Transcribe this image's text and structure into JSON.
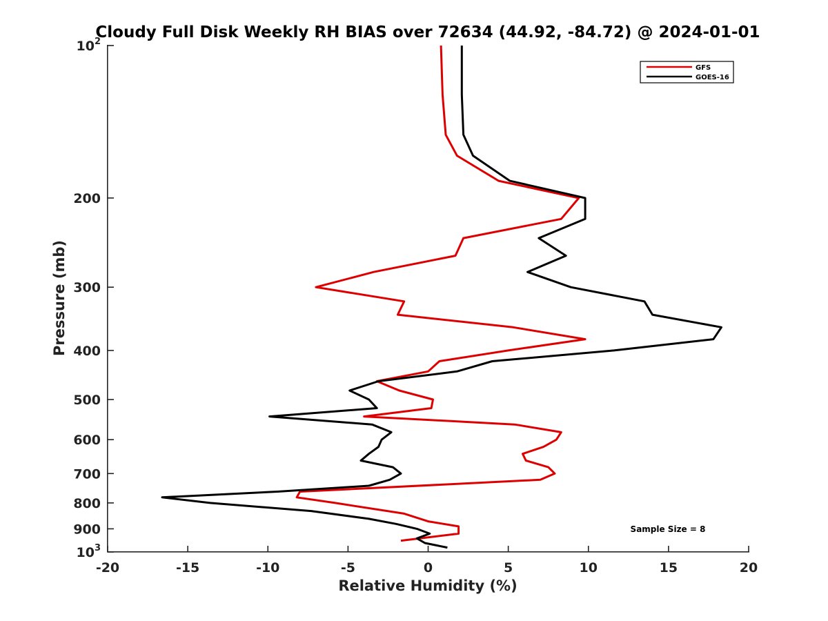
{
  "chart_data": {
    "type": "line",
    "title": "Cloudy Full Disk Weekly RH BIAS over 72634 (44.92, -84.72) @ 2024-01-01",
    "xlabel": "Relative Humidity (%)",
    "ylabel": "Pressure (mb)",
    "xlim": [
      -20,
      20
    ],
    "ylim": [
      100,
      1000
    ],
    "y_scale": "log",
    "y_reversed": true,
    "grid": false,
    "legend_position": "top-right",
    "x_ticks": [
      -20,
      -15,
      -10,
      -5,
      0,
      5,
      10,
      15,
      20
    ],
    "y_ticks": [
      {
        "value": 100,
        "base": "10",
        "exp": "2"
      },
      {
        "value": 200,
        "label": "200"
      },
      {
        "value": 300,
        "label": "300"
      },
      {
        "value": 400,
        "label": "400"
      },
      {
        "value": 500,
        "label": "500"
      },
      {
        "value": 600,
        "label": "600"
      },
      {
        "value": 700,
        "label": "700"
      },
      {
        "value": 800,
        "label": "800"
      },
      {
        "value": 900,
        "label": "900"
      },
      {
        "value": 1000,
        "base": "10",
        "exp": "3"
      }
    ],
    "series": [
      {
        "name": "GFS",
        "color": "#dd0000",
        "points": [
          [
            0.8,
            100
          ],
          [
            0.9,
            125
          ],
          [
            1.1,
            150
          ],
          [
            1.8,
            165
          ],
          [
            4.4,
            185
          ],
          [
            9.4,
            200
          ],
          [
            8.3,
            220
          ],
          [
            2.2,
            240
          ],
          [
            1.7,
            260
          ],
          [
            -3.4,
            280
          ],
          [
            -7.0,
            300
          ],
          [
            -1.5,
            320
          ],
          [
            -1.9,
            340
          ],
          [
            5.3,
            360
          ],
          [
            9.8,
            380
          ],
          [
            5.0,
            400
          ],
          [
            0.7,
            420
          ],
          [
            0.0,
            440
          ],
          [
            -3.2,
            460
          ],
          [
            -1.8,
            480
          ],
          [
            0.3,
            500
          ],
          [
            0.2,
            520
          ],
          [
            -4.0,
            540
          ],
          [
            5.4,
            560
          ],
          [
            8.3,
            580
          ],
          [
            8.0,
            600
          ],
          [
            7.2,
            620
          ],
          [
            5.9,
            640
          ],
          [
            6.1,
            660
          ],
          [
            7.5,
            680
          ],
          [
            7.9,
            700
          ],
          [
            7.0,
            720
          ],
          [
            -8.0,
            760
          ],
          [
            -8.2,
            780
          ],
          [
            -5.8,
            800
          ],
          [
            -1.5,
            840
          ],
          [
            0.0,
            870
          ],
          [
            1.9,
            890
          ],
          [
            1.9,
            920
          ],
          [
            -1.7,
            950
          ]
        ]
      },
      {
        "name": "GOES-16",
        "color": "#000000",
        "points": [
          [
            2.1,
            100
          ],
          [
            2.1,
            125
          ],
          [
            2.2,
            150
          ],
          [
            2.8,
            165
          ],
          [
            5.1,
            185
          ],
          [
            9.8,
            200
          ],
          [
            9.8,
            220
          ],
          [
            6.9,
            240
          ],
          [
            8.6,
            260
          ],
          [
            6.2,
            280
          ],
          [
            8.9,
            300
          ],
          [
            13.5,
            320
          ],
          [
            14.0,
            340
          ],
          [
            18.3,
            360
          ],
          [
            17.8,
            380
          ],
          [
            11.6,
            400
          ],
          [
            4.0,
            420
          ],
          [
            1.8,
            440
          ],
          [
            -3.1,
            460
          ],
          [
            -4.9,
            480
          ],
          [
            -3.7,
            500
          ],
          [
            -3.2,
            520
          ],
          [
            -9.9,
            540
          ],
          [
            -3.5,
            560
          ],
          [
            -2.3,
            580
          ],
          [
            -2.9,
            600
          ],
          [
            -3.1,
            620
          ],
          [
            -3.7,
            640
          ],
          [
            -4.2,
            660
          ],
          [
            -2.2,
            680
          ],
          [
            -1.7,
            700
          ],
          [
            -2.4,
            720
          ],
          [
            -3.7,
            740
          ],
          [
            -9.4,
            760
          ],
          [
            -16.6,
            780
          ],
          [
            -13.6,
            800
          ],
          [
            -7.3,
            830
          ],
          [
            -3.7,
            860
          ],
          [
            -2.0,
            880
          ],
          [
            -0.7,
            900
          ],
          [
            0.1,
            920
          ],
          [
            -0.7,
            940
          ],
          [
            -0.2,
            960
          ],
          [
            1.2,
            980
          ]
        ]
      }
    ],
    "annotations": [
      {
        "text": "Sample Size = 8",
        "position": "bottom-right"
      }
    ]
  }
}
